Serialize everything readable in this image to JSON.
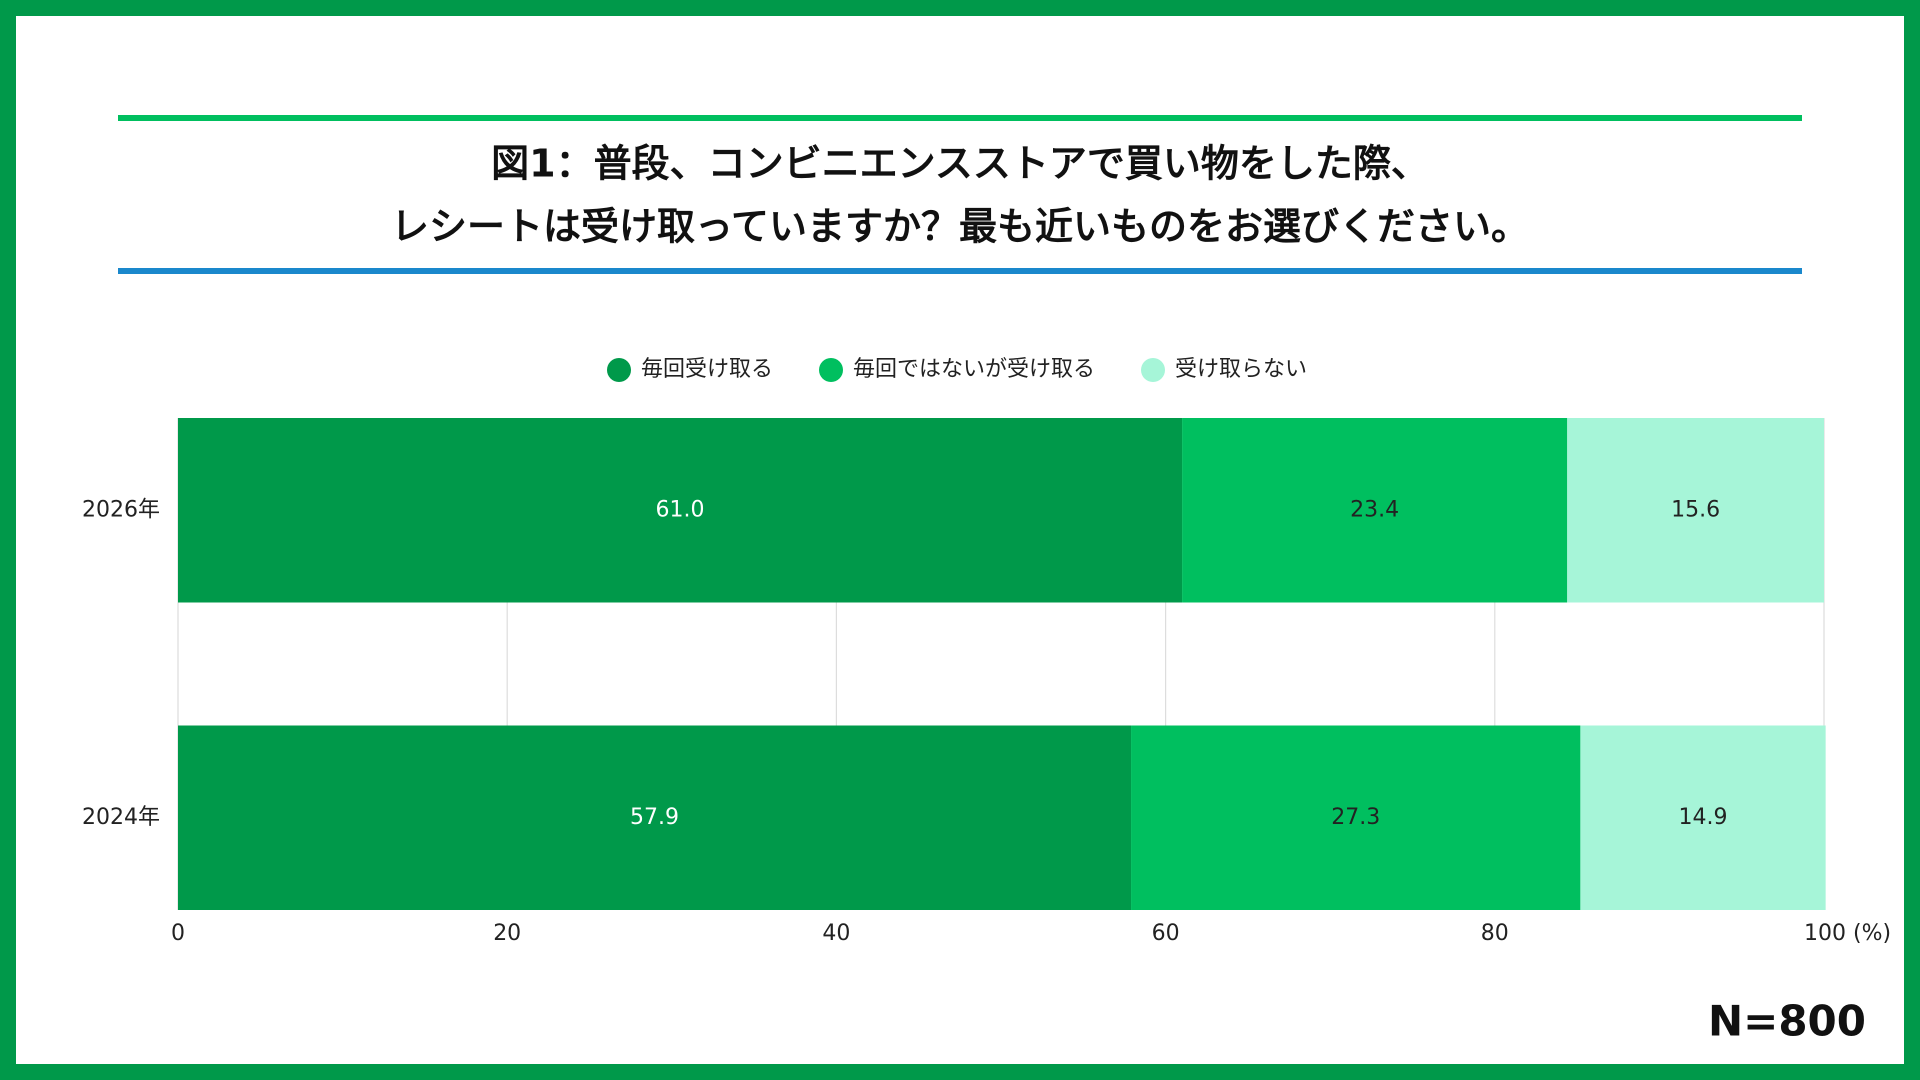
{
  "chart_data": {
    "type": "stacked-barh",
    "title": "図1：普段、コンビニエンスストアで買い物をした際、",
    "subtitle": "レシートは受け取っていますか？最も近いものをお選びください。",
    "categories": [
      "2026年",
      "2024年"
    ],
    "series": [
      {
        "name": "毎回受け取る",
        "color": "#00994a",
        "values": [
          61.0,
          57.9
        ],
        "value_labels": [
          "61.0",
          "57.9"
        ]
      },
      {
        "name": "毎回ではないが受け取る",
        "color": "#00bf5f",
        "values": [
          23.4,
          27.3
        ]
      },
      {
        "name": "受け取らない",
        "color": "#a6f5d8",
        "values": [
          15.6,
          14.9
        ]
      }
    ],
    "xlim": [
      0,
      100
    ],
    "xticks": [
      0,
      20,
      40,
      60,
      80,
      {
        "value": 100,
        "label": "100 (%)"
      }
    ],
    "grid": true,
    "legend": "top",
    "note": "N=800"
  }
}
